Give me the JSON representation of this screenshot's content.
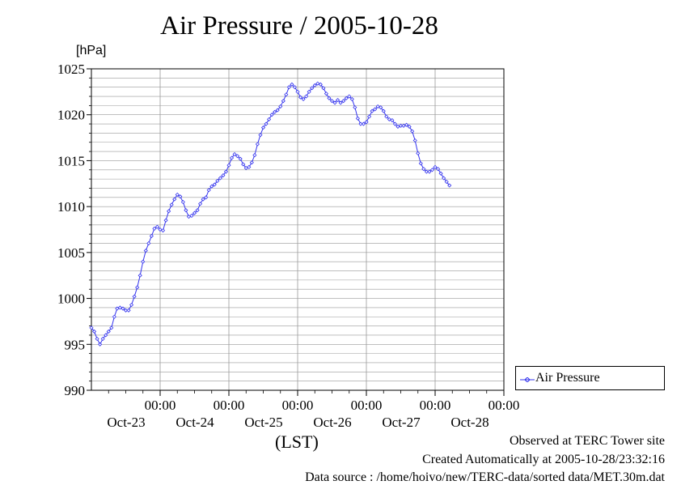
{
  "header": {
    "title": "Air Pressure / 2005-10-28",
    "unit": "[hPa]"
  },
  "footer": {
    "observed": "Observed at TERC Tower site",
    "created": "Created Automatically at 2005-10-28/23:32:16",
    "source": "Data source : /home/hoivo/new/TERC-data/sorted data/MET.30m.dat"
  },
  "legend": {
    "label": "Air Pressure"
  },
  "colors": {
    "series": "#3333ee",
    "grid": "#999999"
  },
  "chart_data": {
    "type": "line",
    "title": "Air Pressure / 2005-10-28",
    "ylabel": "[hPa]",
    "xlabel": "(LST)",
    "ylim": [
      990,
      1025
    ],
    "xlim_hours": [
      0,
      144
    ],
    "x_unit": "hours since 2005-10-22 00:00 LST",
    "y_ticks": [
      990,
      995,
      1000,
      1005,
      1010,
      1015,
      1020,
      1025
    ],
    "x_ticks": [
      {
        "hour": 24,
        "time": "00:00",
        "date": "Oct-23"
      },
      {
        "hour": 48,
        "time": "00:00",
        "date": "Oct-24"
      },
      {
        "hour": 72,
        "time": "00:00",
        "date": "Oct-25"
      },
      {
        "hour": 96,
        "time": "00:00",
        "date": "Oct-26"
      },
      {
        "hour": 120,
        "time": "00:00",
        "date": "Oct-27"
      },
      {
        "hour": 144,
        "time": "00:00",
        "date": "Oct-28"
      }
    ],
    "grid": true,
    "legend_position": "right",
    "series": [
      {
        "name": "Air Pressure",
        "marker": "diamond",
        "points": [
          [
            0,
            996.8
          ],
          [
            1,
            996.4
          ],
          [
            2,
            995.6
          ],
          [
            3,
            995.0
          ],
          [
            4,
            995.6
          ],
          [
            5,
            996.0
          ],
          [
            6,
            996.4
          ],
          [
            7,
            996.8
          ],
          [
            8,
            998.0
          ],
          [
            9,
            998.9
          ],
          [
            10,
            999.0
          ],
          [
            11,
            998.9
          ],
          [
            12,
            998.7
          ],
          [
            13,
            998.7
          ],
          [
            14,
            999.3
          ],
          [
            15,
            1000.2
          ],
          [
            16,
            1001.2
          ],
          [
            17,
            1002.5
          ],
          [
            18,
            1004.0
          ],
          [
            19,
            1005.2
          ],
          [
            20,
            1006.0
          ],
          [
            21,
            1006.8
          ],
          [
            22,
            1007.6
          ],
          [
            23,
            1007.8
          ],
          [
            24,
            1007.5
          ],
          [
            25,
            1007.4
          ],
          [
            26,
            1008.5
          ],
          [
            27,
            1009.5
          ],
          [
            28,
            1010.2
          ],
          [
            29,
            1010.8
          ],
          [
            30,
            1011.3
          ],
          [
            31,
            1011.1
          ],
          [
            32,
            1010.5
          ],
          [
            33,
            1009.6
          ],
          [
            34,
            1008.9
          ],
          [
            35,
            1009.0
          ],
          [
            36,
            1009.3
          ],
          [
            37,
            1009.6
          ],
          [
            38,
            1010.3
          ],
          [
            39,
            1010.8
          ],
          [
            40,
            1011.0
          ],
          [
            41,
            1011.8
          ],
          [
            42,
            1012.2
          ],
          [
            43,
            1012.4
          ],
          [
            44,
            1012.8
          ],
          [
            45,
            1013.1
          ],
          [
            46,
            1013.4
          ],
          [
            47,
            1013.8
          ],
          [
            48,
            1014.5
          ],
          [
            49,
            1015.3
          ],
          [
            50,
            1015.7
          ],
          [
            51,
            1015.5
          ],
          [
            52,
            1015.2
          ],
          [
            53,
            1014.6
          ],
          [
            54,
            1014.2
          ],
          [
            55,
            1014.3
          ],
          [
            56,
            1014.8
          ],
          [
            57,
            1015.6
          ],
          [
            58,
            1016.8
          ],
          [
            59,
            1017.8
          ],
          [
            60,
            1018.6
          ],
          [
            61,
            1019.0
          ],
          [
            62,
            1019.5
          ],
          [
            63,
            1020.0
          ],
          [
            64,
            1020.3
          ],
          [
            65,
            1020.5
          ],
          [
            66,
            1020.9
          ],
          [
            67,
            1021.5
          ],
          [
            68,
            1022.2
          ],
          [
            69,
            1023.0
          ],
          [
            70,
            1023.3
          ],
          [
            71,
            1023.0
          ],
          [
            72,
            1022.5
          ],
          [
            73,
            1021.9
          ],
          [
            74,
            1021.7
          ],
          [
            75,
            1022.0
          ],
          [
            76,
            1022.5
          ],
          [
            77,
            1022.9
          ],
          [
            78,
            1023.2
          ],
          [
            79,
            1023.4
          ],
          [
            80,
            1023.3
          ],
          [
            81,
            1022.9
          ],
          [
            82,
            1022.3
          ],
          [
            83,
            1021.8
          ],
          [
            84,
            1021.5
          ],
          [
            85,
            1021.3
          ],
          [
            86,
            1021.6
          ],
          [
            87,
            1021.3
          ],
          [
            88,
            1021.5
          ],
          [
            89,
            1021.8
          ],
          [
            90,
            1022.0
          ],
          [
            91,
            1021.7
          ],
          [
            92,
            1020.8
          ],
          [
            93,
            1019.6
          ],
          [
            94,
            1019.0
          ],
          [
            95,
            1019.0
          ],
          [
            96,
            1019.2
          ],
          [
            97,
            1019.8
          ],
          [
            98,
            1020.4
          ],
          [
            99,
            1020.6
          ],
          [
            100,
            1020.9
          ],
          [
            101,
            1020.8
          ],
          [
            102,
            1020.4
          ],
          [
            103,
            1019.8
          ],
          [
            104,
            1019.5
          ],
          [
            105,
            1019.4
          ],
          [
            106,
            1019.0
          ],
          [
            107,
            1018.7
          ],
          [
            108,
            1018.8
          ],
          [
            109,
            1018.8
          ],
          [
            110,
            1018.9
          ],
          [
            111,
            1018.7
          ],
          [
            112,
            1018.2
          ],
          [
            113,
            1017.2
          ],
          [
            114,
            1015.8
          ],
          [
            115,
            1014.7
          ],
          [
            116,
            1014.1
          ],
          [
            117,
            1013.8
          ],
          [
            118,
            1013.8
          ],
          [
            119,
            1014.0
          ],
          [
            120,
            1014.3
          ],
          [
            121,
            1014.1
          ],
          [
            122,
            1013.6
          ],
          [
            123,
            1013.1
          ],
          [
            124,
            1012.7
          ],
          [
            125,
            1012.3
          ]
        ]
      }
    ]
  }
}
